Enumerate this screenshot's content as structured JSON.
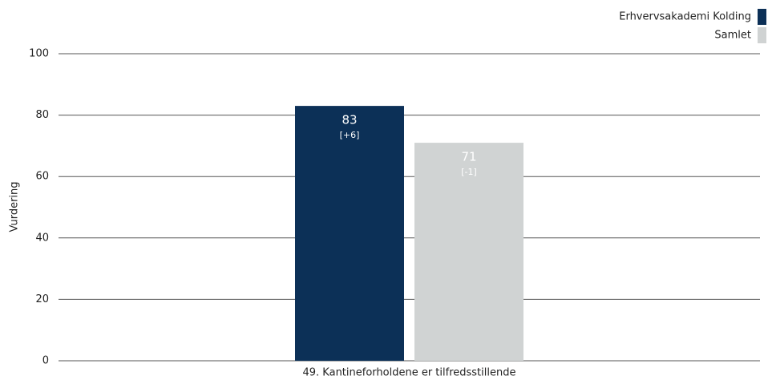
{
  "chart_data": {
    "type": "bar",
    "categories": [
      "49. Kantineforholdene er tilfredsstillende"
    ],
    "ylabel": "Vurdering",
    "series": [
      {
        "name": "Erhvervsakademi Kolding",
        "color": "#0c3057",
        "values": [
          83
        ],
        "change_labels": [
          "[+6]"
        ]
      },
      {
        "name": "Samlet",
        "color": "#d0d3d3",
        "values": [
          71
        ],
        "change_labels": [
          "[-1]"
        ]
      }
    ],
    "ylim": [
      0,
      100
    ],
    "yticks": [
      0,
      20,
      40,
      60,
      80,
      100
    ],
    "grid": true,
    "legend": "top-right"
  }
}
